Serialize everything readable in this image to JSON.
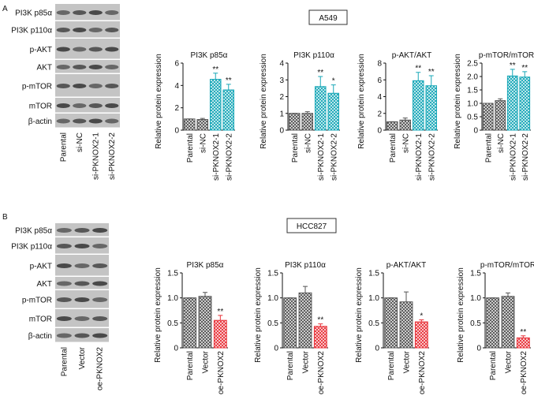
{
  "panels": [
    {
      "label": "A",
      "cell_line": "A549",
      "blot_rows": [
        "PI3K p85α",
        "PI3K p110α",
        "p-AKT",
        "AKT",
        "p-mTOR",
        "mTOR",
        "β-actin"
      ],
      "blot_lanes": [
        "Parental",
        "si-NC",
        "si-PKNOX2-1",
        "si-PKNOX2-2"
      ]
    },
    {
      "label": "B",
      "cell_line": "HCC827",
      "blot_rows": [
        "PI3K p85α",
        "PI3K p110α",
        "p-AKT",
        "AKT",
        "p-mTOR",
        "mTOR",
        "β-actin"
      ],
      "blot_lanes": [
        "Parental",
        "Vector",
        "oe-PKNOX2"
      ]
    }
  ],
  "chart_data": [
    {
      "type": "bar",
      "title": "PI3K p85α",
      "ylabel": "Relative protein expression",
      "categories": [
        "Parental",
        "si-NC",
        "si-PKNOX2-1",
        "si-PKNOX2-2"
      ],
      "values": [
        1,
        0.95,
        4.55,
        3.6
      ],
      "errors": [
        0,
        0.1,
        0.55,
        0.5
      ],
      "significance": [
        null,
        null,
        "**",
        "**"
      ],
      "colors": [
        "#555555",
        "#555555",
        "#1aa8b8",
        "#1aa8b8"
      ],
      "ylim": [
        0,
        6
      ],
      "yticks": [
        0,
        2,
        4,
        6
      ]
    },
    {
      "type": "bar",
      "title": "PI3K p110α",
      "ylabel": "Relative protein expression",
      "categories": [
        "Parental",
        "si-NC",
        "si-PKNOX2-1",
        "si-PKNOX2-2"
      ],
      "values": [
        1,
        1,
        2.6,
        2.2
      ],
      "errors": [
        0,
        0.1,
        0.6,
        0.5
      ],
      "significance": [
        null,
        null,
        "**",
        "*"
      ],
      "colors": [
        "#555555",
        "#555555",
        "#1aa8b8",
        "#1aa8b8"
      ],
      "ylim": [
        0,
        4
      ],
      "yticks": [
        0,
        1,
        2,
        3,
        4
      ]
    },
    {
      "type": "bar",
      "title": "p-AKT/AKT",
      "ylabel": "Relative protein expression",
      "categories": [
        "Parental",
        "si-NC",
        "si-PKNOX2-1",
        "si-PKNOX2-2"
      ],
      "values": [
        1,
        1.2,
        5.9,
        5.3
      ],
      "errors": [
        0,
        0.25,
        1,
        1.2
      ],
      "significance": [
        null,
        null,
        "**",
        "**"
      ],
      "colors": [
        "#555555",
        "#555555",
        "#1aa8b8",
        "#1aa8b8"
      ],
      "ylim": [
        0,
        8
      ],
      "yticks": [
        0,
        2,
        4,
        6,
        8
      ]
    },
    {
      "type": "bar",
      "title": "p-mTOR/mTOR",
      "ylabel": "Relative protein expression",
      "categories": [
        "Parental",
        "si-NC",
        "si-PKNOX2-1",
        "si-PKNOX2-2"
      ],
      "values": [
        1,
        1.1,
        2.02,
        1.98
      ],
      "errors": [
        0,
        0.07,
        0.25,
        0.2
      ],
      "significance": [
        null,
        null,
        "**",
        "**"
      ],
      "colors": [
        "#555555",
        "#555555",
        "#1aa8b8",
        "#1aa8b8"
      ],
      "ylim": [
        0,
        2.5
      ],
      "yticks": [
        0,
        0.5,
        {
          "value": 1,
          "label": "1.0"
        },
        1.5,
        {
          "value": 2,
          "label": "2.0"
        },
        2.5
      ]
    },
    {
      "type": "bar",
      "title": "PI3K p85α",
      "ylabel": "Relative protein expression",
      "categories": [
        "Parental",
        "Vector",
        "oe-PKNOX2"
      ],
      "values": [
        1,
        1.03,
        0.55
      ],
      "errors": [
        0,
        0.08,
        0.1
      ],
      "significance": [
        null,
        null,
        "**"
      ],
      "colors": [
        "#555555",
        "#555555",
        "#e8333a"
      ],
      "ylim": [
        0,
        1.5
      ],
      "yticks": [
        0,
        0.5,
        {
          "value": 1,
          "label": "1.0"
        },
        1.5
      ]
    },
    {
      "type": "bar",
      "title": "PI3K p110α",
      "ylabel": "Relative protein expression",
      "categories": [
        "Parental",
        "Vector",
        "oe-PKNOX2"
      ],
      "values": [
        1,
        1.1,
        0.43
      ],
      "errors": [
        0,
        0.13,
        0.05
      ],
      "significance": [
        null,
        null,
        "**"
      ],
      "colors": [
        "#555555",
        "#555555",
        "#e8333a"
      ],
      "ylim": [
        0,
        1.5
      ],
      "yticks": [
        0,
        0.5,
        {
          "value": 1,
          "label": "1.0"
        },
        1.5
      ]
    },
    {
      "type": "bar",
      "title": "p-AKT/AKT",
      "ylabel": "Relative protein expression",
      "categories": [
        "Parental",
        "Vector",
        "oe-PKNOX2"
      ],
      "values": [
        1,
        0.92,
        0.52
      ],
      "errors": [
        0,
        0.2,
        0.04
      ],
      "significance": [
        null,
        null,
        "*"
      ],
      "colors": [
        "#555555",
        "#555555",
        "#e8333a"
      ],
      "ylim": [
        0,
        1.5
      ],
      "yticks": [
        0,
        0.5,
        {
          "value": 1,
          "label": "1.0"
        },
        1.5
      ]
    },
    {
      "type": "bar",
      "title": "p-mTOR/mTOR",
      "ylabel": "Relative protein expression",
      "categories": [
        "Parental",
        "Vector",
        "oe-PKNOX2"
      ],
      "values": [
        1,
        1.03,
        0.2
      ],
      "errors": [
        0,
        0.07,
        0.04
      ],
      "significance": [
        null,
        null,
        "**"
      ],
      "colors": [
        "#555555",
        "#555555",
        "#e8333a"
      ],
      "ylim": [
        0,
        1.5
      ],
      "yticks": [
        0,
        0.5,
        {
          "value": 1,
          "label": "1.0"
        },
        1.5
      ]
    }
  ]
}
